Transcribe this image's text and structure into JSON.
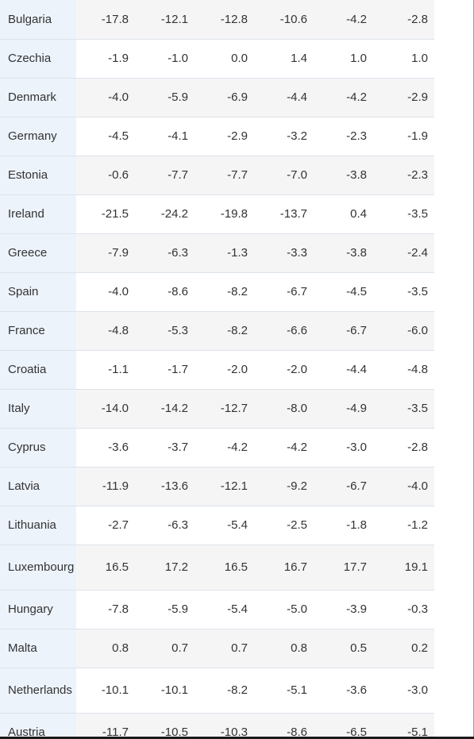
{
  "rows": [
    {
      "country": "Bulgaria",
      "values": [
        "-17.8",
        "-12.1",
        "-12.8",
        "-10.6",
        "-4.2",
        "-2.8"
      ]
    },
    {
      "country": "Czechia",
      "values": [
        "-1.9",
        "-1.0",
        "0.0",
        "1.4",
        "1.0",
        "1.0"
      ]
    },
    {
      "country": "Denmark",
      "values": [
        "-4.0",
        "-5.9",
        "-6.9",
        "-4.4",
        "-4.2",
        "-2.9"
      ]
    },
    {
      "country": "Germany",
      "values": [
        "-4.5",
        "-4.1",
        "-2.9",
        "-3.2",
        "-2.3",
        "-1.9"
      ]
    },
    {
      "country": "Estonia",
      "values": [
        "-0.6",
        "-7.7",
        "-7.7",
        "-7.0",
        "-3.8",
        "-2.3"
      ]
    },
    {
      "country": "Ireland",
      "values": [
        "-21.5",
        "-24.2",
        "-19.8",
        "-13.7",
        "0.4",
        "-3.5"
      ]
    },
    {
      "country": "Greece",
      "values": [
        "-7.9",
        "-6.3",
        "-1.3",
        "-3.3",
        "-3.8",
        "-2.4"
      ]
    },
    {
      "country": "Spain",
      "values": [
        "-4.0",
        "-8.6",
        "-8.2",
        "-6.7",
        "-4.5",
        "-3.5"
      ]
    },
    {
      "country": "France",
      "values": [
        "-4.8",
        "-5.3",
        "-8.2",
        "-6.6",
        "-6.7",
        "-6.0"
      ]
    },
    {
      "country": "Croatia",
      "values": [
        "-1.1",
        "-1.7",
        "-2.0",
        "-2.0",
        "-4.4",
        "-4.8"
      ]
    },
    {
      "country": "Italy",
      "values": [
        "-14.0",
        "-14.2",
        "-12.7",
        "-8.0",
        "-4.9",
        "-3.5"
      ]
    },
    {
      "country": "Cyprus",
      "values": [
        "-3.6",
        "-3.7",
        "-4.2",
        "-4.2",
        "-3.0",
        "-2.8"
      ]
    },
    {
      "country": "Latvia",
      "values": [
        "-11.9",
        "-13.6",
        "-12.1",
        "-9.2",
        "-6.7",
        "-4.0"
      ]
    },
    {
      "country": "Lithuania",
      "values": [
        "-2.7",
        "-6.3",
        "-5.4",
        "-2.5",
        "-1.8",
        "-1.2"
      ]
    },
    {
      "country": "Luxembourg",
      "values": [
        "16.5",
        "17.2",
        "16.5",
        "16.7",
        "17.7",
        "19.1"
      ]
    },
    {
      "country": "Hungary",
      "values": [
        "-7.8",
        "-5.9",
        "-5.4",
        "-5.0",
        "-3.9",
        "-0.3"
      ]
    },
    {
      "country": "Malta",
      "values": [
        "0.8",
        "0.7",
        "0.7",
        "0.8",
        "0.5",
        "0.2"
      ]
    },
    {
      "country": "Netherlands",
      "values": [
        "-10.1",
        "-10.1",
        "-8.2",
        "-5.1",
        "-3.6",
        "-3.0"
      ]
    },
    {
      "country": "Austria",
      "values": [
        "-11.7",
        "-10.5",
        "-10.3",
        "-8.6",
        "-6.5",
        "-5.1"
      ]
    }
  ]
}
